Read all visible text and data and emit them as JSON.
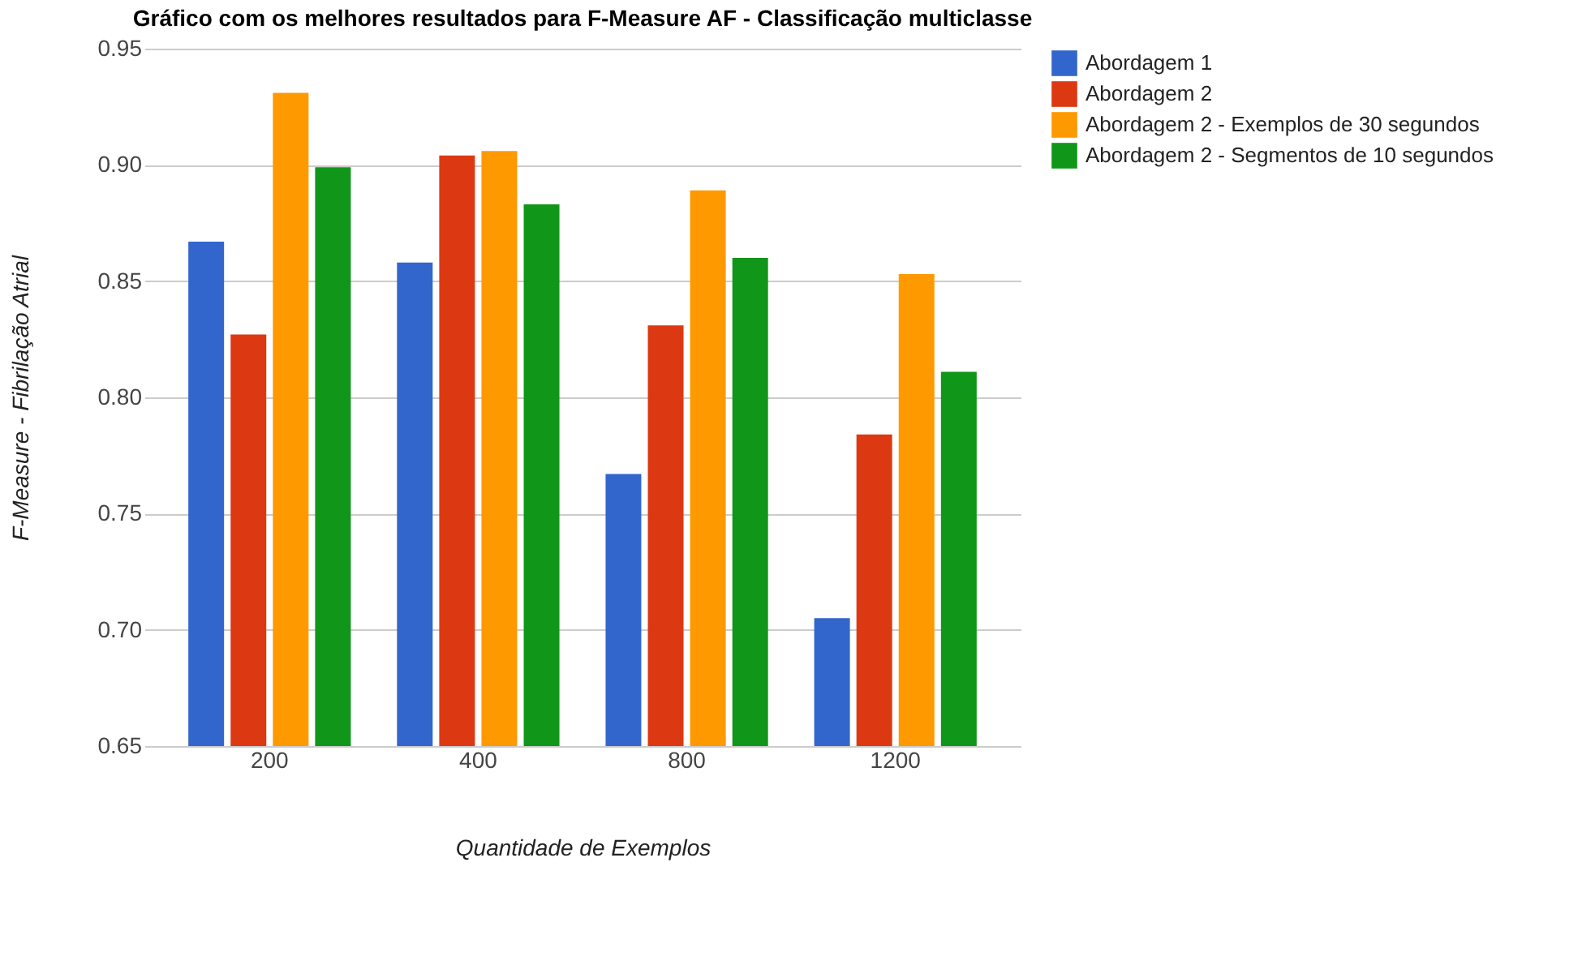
{
  "chart_data": {
    "type": "bar",
    "title": "Gráfico com os melhores resultados para F-Measure AF - Classificação multiclasse",
    "xlabel": "Quantidade de Exemplos",
    "ylabel": "F-Measure - Fibrilação Atrial",
    "categories": [
      "200",
      "400",
      "800",
      "1200"
    ],
    "series": [
      {
        "name": "Abordagem 1",
        "color": "#3366cc",
        "values": [
          0.867,
          0.858,
          0.767,
          0.705
        ]
      },
      {
        "name": "Abordagem 2",
        "color": "#dc3912",
        "values": [
          0.827,
          0.904,
          0.831,
          0.784
        ]
      },
      {
        "name": "Abordagem 2 - Exemplos de 30 segundos",
        "color": "#ff9900",
        "values": [
          0.931,
          0.906,
          0.889,
          0.853
        ]
      },
      {
        "name": "Abordagem 2 - Segmentos de 10 segundos",
        "color": "#109618",
        "values": [
          0.899,
          0.883,
          0.86,
          0.811
        ]
      }
    ],
    "ylim": [
      0.65,
      0.95
    ],
    "yticks": [
      {
        "value": 0.65,
        "label": "0.65"
      },
      {
        "value": 0.7,
        "label": "0.70"
      },
      {
        "value": 0.75,
        "label": "0.75"
      },
      {
        "value": 0.8,
        "label": "0.80"
      },
      {
        "value": 0.85,
        "label": "0.85"
      },
      {
        "value": 0.9,
        "label": "0.90"
      },
      {
        "value": 0.95,
        "label": "0.95"
      }
    ],
    "grid": "y",
    "legend": "right"
  }
}
